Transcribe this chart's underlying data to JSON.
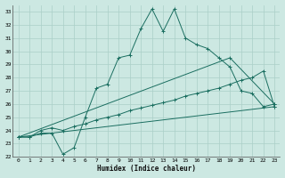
{
  "title": "",
  "xlabel": "Humidex (Indice chaleur)",
  "xlim": [
    -0.5,
    23.5
  ],
  "ylim": [
    22,
    33.5
  ],
  "yticks": [
    22,
    23,
    24,
    25,
    26,
    27,
    28,
    29,
    30,
    31,
    32,
    33
  ],
  "xticks": [
    0,
    1,
    2,
    3,
    4,
    5,
    6,
    7,
    8,
    9,
    10,
    11,
    12,
    13,
    14,
    15,
    16,
    17,
    18,
    19,
    20,
    21,
    22,
    23
  ],
  "bg_color": "#cce8e2",
  "grid_color": "#aacfc8",
  "line_color": "#1a6e60",
  "line1_x": [
    0,
    1,
    2,
    3,
    4,
    5,
    6,
    7,
    8,
    9,
    10,
    11,
    12,
    13,
    14,
    15,
    16,
    17,
    18,
    19,
    20,
    21,
    22,
    23
  ],
  "line1_y": [
    23.5,
    23.5,
    23.8,
    23.8,
    22.2,
    22.7,
    25.0,
    27.2,
    27.5,
    29.5,
    29.7,
    31.7,
    33.2,
    31.5,
    33.2,
    31.0,
    30.5,
    30.2,
    29.5,
    28.8,
    27.0,
    26.8,
    25.8,
    26.0
  ],
  "line2_x": [
    0,
    1,
    2,
    3,
    4,
    5,
    6,
    7,
    8,
    9,
    10,
    11,
    12,
    13,
    14,
    15,
    16,
    17,
    18,
    19,
    20,
    21,
    22,
    23
  ],
  "line2_y": [
    23.5,
    23.5,
    24.0,
    24.2,
    24.0,
    24.3,
    24.5,
    24.8,
    25.0,
    25.2,
    25.5,
    25.7,
    25.9,
    26.1,
    26.3,
    26.6,
    26.8,
    27.0,
    27.2,
    27.5,
    27.8,
    28.0,
    28.5,
    25.8
  ],
  "line3_x": [
    0,
    23
  ],
  "line3_y": [
    23.5,
    25.8
  ],
  "line4_x": [
    0,
    19,
    23
  ],
  "line4_y": [
    23.5,
    29.5,
    26.0
  ]
}
